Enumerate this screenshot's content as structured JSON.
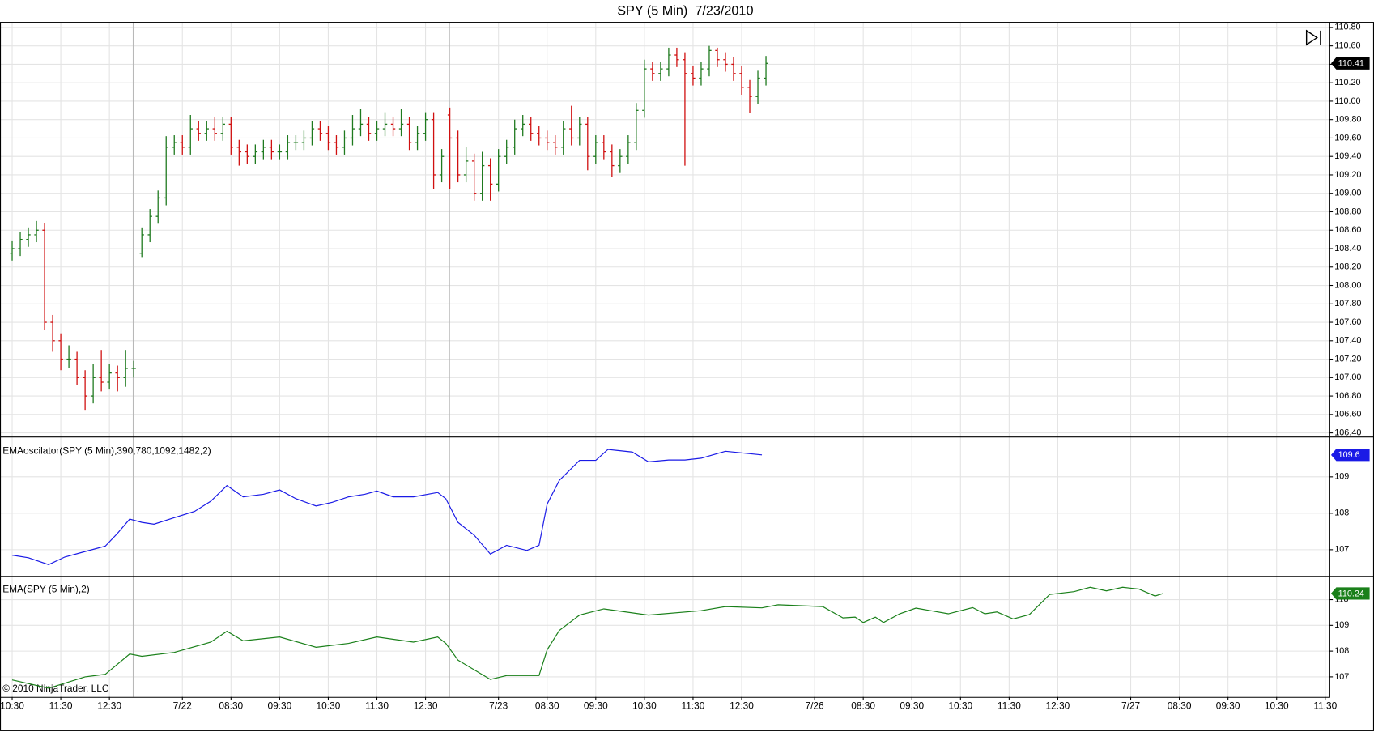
{
  "copyright": "© 2010 NinjaTrader, LLC",
  "chart_data": [
    {
      "type": "ohlc",
      "title": "SPY (5 Min)  7/23/2010",
      "up_color": "#1f7a1f",
      "down_color": "#d01010",
      "label_color": "#000000",
      "grid": true,
      "xlim": [
        -3,
        325
      ],
      "xticks": [
        {
          "value": 0,
          "label": "10:30"
        },
        {
          "value": 12,
          "label": "11:30"
        },
        {
          "value": 24,
          "label": "12:30"
        },
        {
          "value": 42,
          "label": "7/22"
        },
        {
          "value": 54,
          "label": "08:30"
        },
        {
          "value": 66,
          "label": "09:30"
        },
        {
          "value": 78,
          "label": "10:30"
        },
        {
          "value": 90,
          "label": "11:30"
        },
        {
          "value": 102,
          "label": "12:30"
        },
        {
          "value": 120,
          "label": "7/23"
        },
        {
          "value": 132,
          "label": "08:30"
        },
        {
          "value": 144,
          "label": "09:30"
        },
        {
          "value": 156,
          "label": "10:30"
        },
        {
          "value": 168,
          "label": "11:30"
        },
        {
          "value": 180,
          "label": "12:30"
        },
        {
          "value": 198,
          "label": "7/26"
        },
        {
          "value": 210,
          "label": "08:30"
        },
        {
          "value": 222,
          "label": "09:30"
        },
        {
          "value": 234,
          "label": "10:30"
        },
        {
          "value": 246,
          "label": "11:30"
        },
        {
          "value": 258,
          "label": "12:30"
        },
        {
          "value": 276,
          "label": "7/27"
        },
        {
          "value": 288,
          "label": "08:30"
        },
        {
          "value": 300,
          "label": "09:30"
        },
        {
          "value": 312,
          "label": "10:30"
        },
        {
          "value": 324,
          "label": "11:30"
        }
      ],
      "ylim": [
        106.36,
        110.86
      ],
      "yticks": [
        {
          "value": 106.4,
          "label": "106.40"
        },
        {
          "value": 106.6,
          "label": "106.60"
        },
        {
          "value": 106.8,
          "label": "106.80"
        },
        {
          "value": 107,
          "label": "107.00"
        },
        {
          "value": 107.2,
          "label": "107.20"
        },
        {
          "value": 107.4,
          "label": "107.40"
        },
        {
          "value": 107.6,
          "label": "107.60"
        },
        {
          "value": 107.8,
          "label": "107.80"
        },
        {
          "value": 108,
          "label": "108.00"
        },
        {
          "value": 108.2,
          "label": "108.20"
        },
        {
          "value": 108.4,
          "label": "108.40"
        },
        {
          "value": 108.6,
          "label": "108.60"
        },
        {
          "value": 108.8,
          "label": "108.80"
        },
        {
          "value": 109,
          "label": "109.00"
        },
        {
          "value": 109.2,
          "label": "109.20"
        },
        {
          "value": 109.4,
          "label": "109.40"
        },
        {
          "value": 109.6,
          "label": "109.60"
        },
        {
          "value": 109.8,
          "label": "109.80"
        },
        {
          "value": 110,
          "label": "110.00"
        },
        {
          "value": 110.2,
          "label": "110.20"
        },
        {
          "value": 110.4,
          "label": "110.40"
        },
        {
          "value": 110.6,
          "label": "110.60"
        },
        {
          "value": 110.8,
          "label": "110.80"
        }
      ],
      "x": [
        0,
        2,
        4,
        6,
        8,
        10,
        12,
        14,
        16,
        18,
        20,
        22,
        24,
        26,
        28,
        30,
        32,
        34,
        36,
        38,
        40,
        42,
        44,
        46,
        48,
        50,
        52,
        54,
        56,
        58,
        60,
        62,
        64,
        66,
        68,
        70,
        72,
        74,
        76,
        78,
        80,
        82,
        84,
        86,
        88,
        90,
        92,
        94,
        96,
        98,
        100,
        102,
        104,
        106,
        108,
        110,
        112,
        114,
        116,
        118,
        120,
        122,
        124,
        126,
        128,
        130,
        132,
        134,
        136,
        138,
        140,
        142,
        144,
        146,
        148,
        150,
        152,
        154,
        156,
        158,
        160,
        162,
        164,
        166,
        168,
        170,
        172,
        174,
        176,
        178,
        180,
        182,
        184,
        186
      ],
      "open": [
        108.35,
        108.4,
        108.5,
        108.55,
        108.6,
        107.6,
        107.4,
        107.2,
        107.2,
        107.0,
        106.8,
        107.0,
        106.95,
        107.05,
        107.0,
        107.1,
        108.35,
        108.55,
        108.75,
        108.95,
        109.5,
        109.55,
        109.5,
        109.7,
        109.65,
        109.7,
        109.65,
        109.75,
        109.5,
        109.45,
        109.4,
        109.45,
        109.5,
        109.45,
        109.45,
        109.55,
        109.55,
        109.6,
        109.7,
        109.65,
        109.55,
        109.5,
        109.6,
        109.7,
        109.75,
        109.65,
        109.7,
        109.75,
        109.7,
        109.75,
        109.55,
        109.65,
        109.8,
        109.2,
        109.85,
        109.6,
        109.2,
        109.35,
        109.0,
        109.3,
        109.1,
        109.4,
        109.5,
        109.7,
        109.75,
        109.65,
        109.6,
        109.55,
        109.5,
        109.7,
        109.6,
        109.75,
        109.4,
        109.55,
        109.45,
        109.3,
        109.4,
        109.55,
        109.9,
        110.35,
        110.3,
        110.35,
        110.5,
        110.45,
        110.3,
        110.25,
        110.35,
        110.55,
        110.45,
        110.4,
        110.3,
        110.15,
        110.05,
        110.25
      ],
      "high": [
        108.48,
        108.58,
        108.63,
        108.7,
        108.68,
        107.68,
        107.48,
        107.35,
        107.28,
        107.08,
        107.15,
        107.3,
        107.15,
        107.13,
        107.3,
        107.18,
        108.63,
        108.83,
        109.03,
        109.62,
        109.63,
        109.63,
        109.85,
        109.78,
        109.78,
        109.83,
        109.83,
        109.83,
        109.58,
        109.53,
        109.53,
        109.58,
        109.58,
        109.53,
        109.63,
        109.63,
        109.68,
        109.78,
        109.78,
        109.73,
        109.63,
        109.68,
        109.85,
        109.92,
        109.83,
        109.78,
        109.88,
        109.83,
        109.92,
        109.83,
        109.73,
        109.88,
        109.88,
        109.48,
        109.93,
        109.68,
        109.5,
        109.43,
        109.45,
        109.38,
        109.48,
        109.58,
        109.8,
        109.85,
        109.83,
        109.73,
        109.68,
        109.63,
        109.78,
        109.95,
        109.83,
        109.83,
        109.63,
        109.63,
        109.53,
        109.48,
        109.63,
        109.98,
        110.45,
        110.43,
        110.43,
        110.58,
        110.58,
        110.53,
        110.38,
        110.43,
        110.6,
        110.58,
        110.53,
        110.48,
        110.38,
        110.23,
        110.33,
        110.49
      ],
      "low": [
        108.27,
        108.32,
        108.42,
        108.47,
        107.52,
        107.28,
        107.08,
        107.1,
        106.92,
        106.65,
        106.72,
        106.85,
        106.87,
        106.85,
        106.9,
        107.0,
        108.3,
        108.47,
        108.67,
        108.87,
        109.42,
        109.42,
        109.42,
        109.57,
        109.57,
        109.57,
        109.57,
        109.42,
        109.3,
        109.32,
        109.32,
        109.37,
        109.37,
        109.37,
        109.37,
        109.47,
        109.47,
        109.52,
        109.57,
        109.47,
        109.42,
        109.42,
        109.52,
        109.62,
        109.57,
        109.57,
        109.62,
        109.62,
        109.62,
        109.47,
        109.47,
        109.57,
        109.05,
        109.12,
        109.05,
        109.12,
        109.12,
        108.92,
        108.92,
        108.92,
        109.02,
        109.32,
        109.42,
        109.62,
        109.57,
        109.52,
        109.47,
        109.42,
        109.42,
        109.52,
        109.52,
        109.25,
        109.32,
        109.37,
        109.18,
        109.22,
        109.32,
        109.47,
        109.82,
        110.22,
        110.22,
        110.27,
        110.37,
        109.3,
        110.17,
        110.17,
        110.27,
        110.37,
        110.32,
        110.22,
        110.07,
        109.87,
        109.97,
        110.17
      ],
      "close": [
        108.4,
        108.5,
        108.55,
        108.6,
        107.6,
        107.4,
        107.2,
        107.2,
        107.0,
        106.8,
        107.0,
        106.95,
        107.05,
        107.0,
        107.1,
        107.1,
        108.55,
        108.75,
        108.95,
        109.5,
        109.55,
        109.5,
        109.7,
        109.65,
        109.7,
        109.65,
        109.75,
        109.5,
        109.45,
        109.4,
        109.45,
        109.5,
        109.45,
        109.45,
        109.55,
        109.55,
        109.6,
        109.7,
        109.65,
        109.55,
        109.5,
        109.6,
        109.7,
        109.75,
        109.65,
        109.7,
        109.75,
        109.7,
        109.75,
        109.55,
        109.65,
        109.8,
        109.2,
        109.4,
        109.6,
        109.2,
        109.35,
        109.0,
        109.3,
        109.1,
        109.4,
        109.5,
        109.7,
        109.75,
        109.65,
        109.6,
        109.55,
        109.5,
        109.7,
        109.6,
        109.75,
        109.4,
        109.55,
        109.45,
        109.3,
        109.4,
        109.55,
        109.9,
        110.35,
        110.3,
        110.35,
        110.5,
        110.45,
        110.3,
        110.25,
        110.35,
        110.55,
        110.45,
        110.4,
        110.3,
        110.15,
        110.05,
        110.25,
        110.41
      ]
    },
    {
      "type": "line",
      "title": "EMAoscilator(SPY (5 Min),390,780,1092,1482,2)",
      "color": "#1a1ae6",
      "grid": true,
      "ylim": [
        106.28,
        110.08
      ],
      "yticks": [
        107,
        108,
        109
      ],
      "x": [
        0,
        4,
        9,
        13,
        18,
        23,
        26,
        29,
        32,
        35,
        40,
        45,
        49,
        53,
        57,
        62,
        66,
        70,
        75,
        79,
        83,
        87,
        90,
        94,
        99,
        105,
        107,
        110,
        114,
        118,
        122,
        127,
        130,
        132,
        135,
        140,
        144,
        147,
        153,
        157,
        162,
        166,
        170,
        176,
        185
      ],
      "values": [
        106.85,
        106.78,
        106.59,
        106.8,
        106.95,
        107.1,
        107.45,
        107.84,
        107.75,
        107.7,
        107.88,
        108.05,
        108.33,
        108.76,
        108.45,
        108.52,
        108.64,
        108.4,
        108.2,
        108.3,
        108.45,
        108.52,
        108.61,
        108.45,
        108.45,
        108.57,
        108.4,
        107.75,
        107.4,
        106.88,
        107.12,
        106.98,
        107.12,
        108.25,
        108.9,
        109.45,
        109.45,
        109.75,
        109.68,
        109.41,
        109.46,
        109.46,
        109.51,
        109.7,
        109.6
      ]
    },
    {
      "type": "line",
      "title": "EMA(SPY (5 Min),2)",
      "color": "#1a801a",
      "grid": true,
      "ylim": [
        106.22,
        110.92
      ],
      "yticks": [
        107,
        108,
        109,
        110
      ],
      "x": [
        0,
        9,
        18,
        23,
        29,
        32,
        40,
        49,
        53,
        57,
        66,
        75,
        83,
        90,
        99,
        105,
        107,
        110,
        118,
        122,
        130,
        132,
        135,
        140,
        146,
        157,
        170,
        176,
        185,
        189,
        200,
        205,
        208,
        210,
        213,
        215,
        219,
        223,
        231,
        237,
        240,
        243,
        247,
        251,
        256,
        262,
        266,
        270,
        274,
        278,
        282,
        284
      ],
      "values": [
        106.88,
        106.56,
        107.0,
        107.1,
        107.89,
        107.8,
        107.95,
        108.35,
        108.77,
        108.4,
        108.55,
        108.15,
        108.3,
        108.55,
        108.35,
        108.55,
        108.3,
        107.65,
        106.9,
        107.05,
        107.05,
        108.05,
        108.8,
        109.4,
        109.64,
        109.4,
        109.57,
        109.73,
        109.68,
        109.8,
        109.73,
        109.29,
        109.32,
        109.11,
        109.32,
        109.11,
        109.45,
        109.67,
        109.45,
        109.69,
        109.45,
        109.52,
        109.25,
        109.42,
        110.2,
        110.31,
        110.48,
        110.34,
        110.48,
        110.41,
        110.14,
        110.24
      ]
    }
  ]
}
